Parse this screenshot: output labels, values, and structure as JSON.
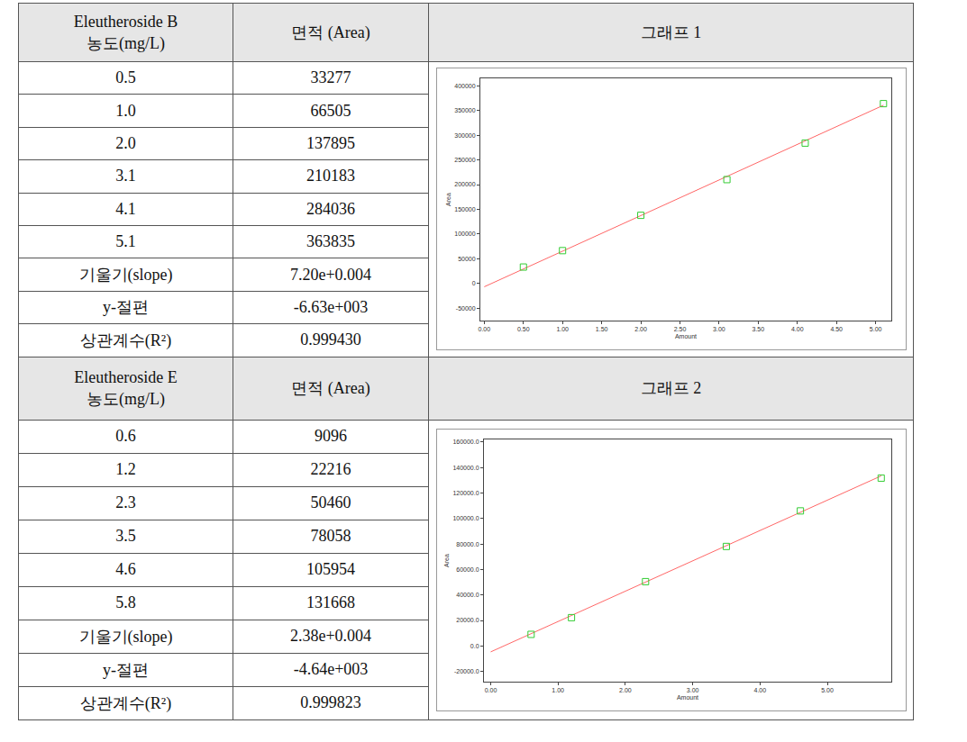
{
  "table": {
    "sections": [
      {
        "header": {
          "col1": [
            "Eleutheroside B",
            "농도(mg/L)"
          ],
          "col2": "면적 (Area)",
          "col3": "그래프 1"
        },
        "rows": [
          [
            "0.5",
            "33277"
          ],
          [
            "1.0",
            "66505"
          ],
          [
            "2.0",
            "137895"
          ],
          [
            "3.1",
            "210183"
          ],
          [
            "4.1",
            "284036"
          ],
          [
            "5.1",
            "363835"
          ],
          [
            "기울기(slope)",
            "7.20e+0.004"
          ],
          [
            "y-절편",
            "-6.63e+003"
          ],
          [
            "상관계수(R²)",
            "0.999430"
          ]
        ]
      },
      {
        "header": {
          "col1": [
            "Eleutheroside E",
            "농도(mg/L)"
          ],
          "col2": "면적 (Area)",
          "col3": "그래프 2"
        },
        "rows": [
          [
            "0.6",
            "9096"
          ],
          [
            "1.2",
            "22216"
          ],
          [
            "2.3",
            "50460"
          ],
          [
            "3.5",
            "78058"
          ],
          [
            "4.6",
            "105954"
          ],
          [
            "5.8",
            "131668"
          ],
          [
            "기울기(slope)",
            "2.38e+0.004"
          ],
          [
            "y-절편",
            "-4.64e+003"
          ],
          [
            "상관계수(R²)",
            "0.999823"
          ]
        ]
      }
    ]
  },
  "chart_data": [
    {
      "type": "scatter",
      "xlabel": "Amount",
      "ylabel": "Area",
      "grid": false,
      "xlim": [
        -0.05,
        5.2
      ],
      "xticks": [
        {
          "value": 0,
          "label": "0.00"
        },
        {
          "value": 0.5,
          "label": "0.50"
        },
        {
          "value": 1,
          "label": "1.00"
        },
        {
          "value": 1.5,
          "label": "1.50"
        },
        {
          "value": 2,
          "label": "2.00"
        },
        {
          "value": 2.5,
          "label": "2.50"
        },
        {
          "value": 3,
          "label": "3.00"
        },
        {
          "value": 3.5,
          "label": "3.50"
        },
        {
          "value": 4,
          "label": "4.00"
        },
        {
          "value": 4.5,
          "label": "4.50"
        },
        {
          "value": 5,
          "label": "5.00"
        }
      ],
      "ylim": [
        -75000,
        415000
      ],
      "yticks": [
        -50000,
        0,
        50000,
        100000,
        150000,
        200000,
        250000,
        300000,
        350000,
        400000
      ],
      "series": [
        {
          "type": "line",
          "color": "#ff6666",
          "x": [
            0,
            5.1
          ],
          "values": [
            -6630,
            360570
          ]
        },
        {
          "type": "scatter",
          "color": "#33cc33",
          "marker": "square-open",
          "x": [
            0.5,
            1.0,
            2.0,
            3.1,
            4.1,
            5.1
          ],
          "values": [
            33277,
            66505,
            137895,
            210183,
            284036,
            363835
          ]
        }
      ]
    },
    {
      "type": "scatter",
      "xlabel": "Amount",
      "ylabel": "Area",
      "grid": false,
      "xlim": [
        -0.1,
        5.95
      ],
      "xticks": [
        {
          "value": 0,
          "label": "0.00"
        },
        {
          "value": 1,
          "label": "1.00"
        },
        {
          "value": 2,
          "label": "2.00"
        },
        {
          "value": 3,
          "label": "3.00"
        },
        {
          "value": 4,
          "label": "4.00"
        },
        {
          "value": 5,
          "label": "5.00"
        }
      ],
      "ylim": [
        -28000,
        162000
      ],
      "yticks": [
        {
          "value": -20000,
          "label": "-20000.0"
        },
        {
          "value": 0,
          "label": "0.0"
        },
        {
          "value": 20000,
          "label": "20000.0"
        },
        {
          "value": 40000,
          "label": "40000.0"
        },
        {
          "value": 60000,
          "label": "60000.0"
        },
        {
          "value": 80000,
          "label": "80000.0"
        },
        {
          "value": 100000,
          "label": "100000.0"
        },
        {
          "value": 120000,
          "label": "120000.0"
        },
        {
          "value": 140000,
          "label": "140000.0"
        },
        {
          "value": 160000,
          "label": "160000.0"
        }
      ],
      "series": [
        {
          "type": "line",
          "color": "#ff6666",
          "x": [
            0,
            5.8
          ],
          "values": [
            -4640,
            133400
          ]
        },
        {
          "type": "scatter",
          "color": "#33cc33",
          "marker": "square-open",
          "x": [
            0.6,
            1.2,
            2.3,
            3.5,
            4.6,
            5.8
          ],
          "values": [
            9096,
            22216,
            50460,
            78058,
            105954,
            131668
          ]
        }
      ]
    }
  ]
}
